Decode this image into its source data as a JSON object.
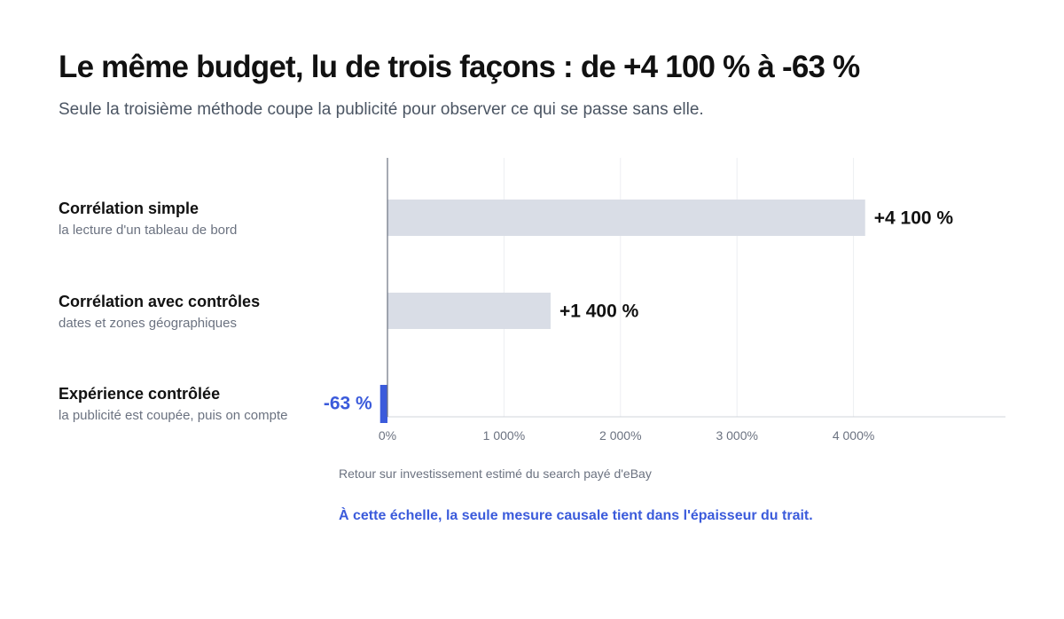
{
  "title": "Le même budget, lu de trois façons : de +4 100 % à -63 %",
  "subtitle": "Seule la troisième méthode coupe la publicité pour observer ce qui se passe sans elle.",
  "note": "À cette échelle, la seule mesure causale tient dans l'épaisseur du trait.",
  "colors": {
    "neutral_bar": "#d9dde6",
    "highlight": "#3b5bdb",
    "grid": "#eceef2",
    "axis": "#d1d5db",
    "zero_line": "#6b7280"
  },
  "chart_data": {
    "type": "bar",
    "orientation": "horizontal",
    "categories": [
      {
        "name": "Corrélation simple",
        "description": "la lecture d'un tableau de bord"
      },
      {
        "name": "Corrélation avec contrôles",
        "description": "dates et zones géographiques"
      },
      {
        "name": "Expérience contrôlée",
        "description": "la publicité est coupée, puis on compte"
      }
    ],
    "values": [
      4100,
      1400,
      -63
    ],
    "value_labels": [
      "+4 100 %",
      "+1 400 %",
      "-63 %"
    ],
    "highlight_index": 2,
    "xlabel": "Retour sur investissement estimé du search payé d'eBay",
    "xlim": [
      -63,
      5300
    ],
    "x_ticks": [
      0,
      1000,
      2000,
      3000,
      4000
    ],
    "x_tick_labels": [
      "0%",
      "1 000%",
      "2 000%",
      "3 000%",
      "4 000%"
    ],
    "grid": true,
    "legend": "none"
  }
}
